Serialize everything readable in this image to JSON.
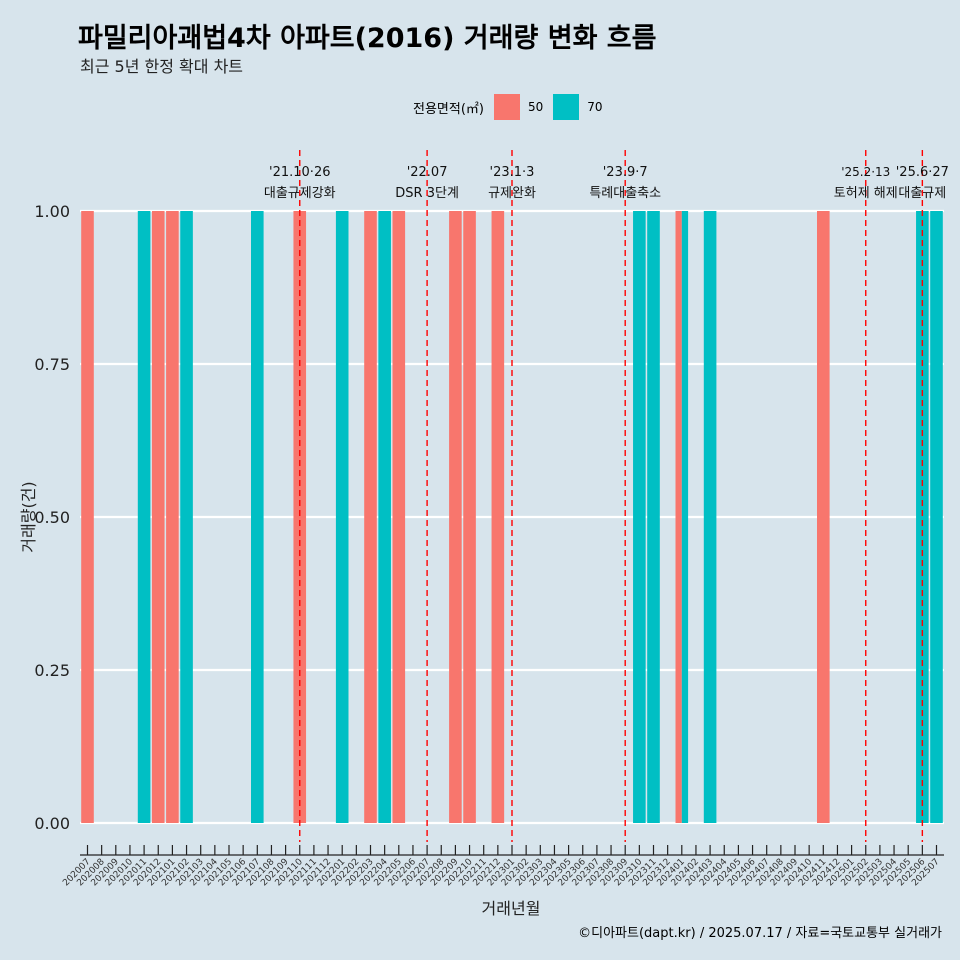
{
  "title": "파밀리아괘법4차 아파트(2016) 거래량 변화 흐름",
  "subtitle": "최근 5년 한정 확대 차트",
  "caption": "©디아파트(dapt.kr) / 2025.07.17 / 자료=국토교통부 실거래가",
  "legend": {
    "title": "전용면적(㎡)",
    "items": [
      {
        "label": "50",
        "color": "#F8766D"
      },
      {
        "label": "70",
        "color": "#00BFC4"
      }
    ]
  },
  "chart_data": {
    "type": "bar",
    "xlabel": "거래년월",
    "ylabel": "거래량(건)",
    "ylim": [
      0,
      1
    ],
    "yticks": [
      "0.00",
      "0.25",
      "0.50",
      "0.75",
      "1.00"
    ],
    "grid": true,
    "legend_position": "top",
    "categories": [
      "202007",
      "202008",
      "202009",
      "202010",
      "202011",
      "202012",
      "202101",
      "202102",
      "202103",
      "202104",
      "202105",
      "202106",
      "202107",
      "202108",
      "202109",
      "202110",
      "202111",
      "202112",
      "202201",
      "202202",
      "202203",
      "202204",
      "202205",
      "202206",
      "202207",
      "202208",
      "202209",
      "202210",
      "202211",
      "202212",
      "202301",
      "202302",
      "202303",
      "202304",
      "202305",
      "202306",
      "202307",
      "202308",
      "202309",
      "202310",
      "202311",
      "202312",
      "202401",
      "202402",
      "202403",
      "202404",
      "202405",
      "202406",
      "202407",
      "202408",
      "202409",
      "202410",
      "202411",
      "202412",
      "202501",
      "202502",
      "202503",
      "202504",
      "202505",
      "202506",
      "202507"
    ],
    "series": [
      {
        "name": "50",
        "color": "#F8766D",
        "points": [
          {
            "x": "202007",
            "y": 1
          },
          {
            "x": "202012",
            "y": 1
          },
          {
            "x": "202101",
            "y": 1
          },
          {
            "x": "202110",
            "y": 1
          },
          {
            "x": "202203",
            "y": 1
          },
          {
            "x": "202205",
            "y": 1
          },
          {
            "x": "202209",
            "y": 1
          },
          {
            "x": "202210",
            "y": 1
          },
          {
            "x": "202212",
            "y": 1
          },
          {
            "x": "202401",
            "y": 1
          },
          {
            "x": "202411",
            "y": 1
          }
        ]
      },
      {
        "name": "70",
        "color": "#00BFC4",
        "points": [
          {
            "x": "202011",
            "y": 1
          },
          {
            "x": "202102",
            "y": 1
          },
          {
            "x": "202107",
            "y": 1
          },
          {
            "x": "202201",
            "y": 1
          },
          {
            "x": "202204",
            "y": 1
          },
          {
            "x": "202310",
            "y": 1
          },
          {
            "x": "202311",
            "y": 1
          },
          {
            "x": "202401",
            "y": 1
          },
          {
            "x": "202403",
            "y": 1
          },
          {
            "x": "202506",
            "y": 1
          },
          {
            "x": "202507",
            "y": 1
          }
        ]
      }
    ],
    "annotations": [
      {
        "x": "202110",
        "date": "'21.10·26",
        "label": "대출규제강화"
      },
      {
        "x": "202207",
        "date": "'22.07",
        "label": "DSR 3단계"
      },
      {
        "x": "202301",
        "date": "'23.1·3",
        "label": "규제완화"
      },
      {
        "x": "202309",
        "date": "'23.9·7",
        "label": "특례대출축소"
      },
      {
        "x": "202502",
        "date": "'25.2·13",
        "label": "토허제 해제"
      },
      {
        "x": "202506",
        "date": "'25.6·27",
        "label": "대출규제"
      }
    ]
  }
}
